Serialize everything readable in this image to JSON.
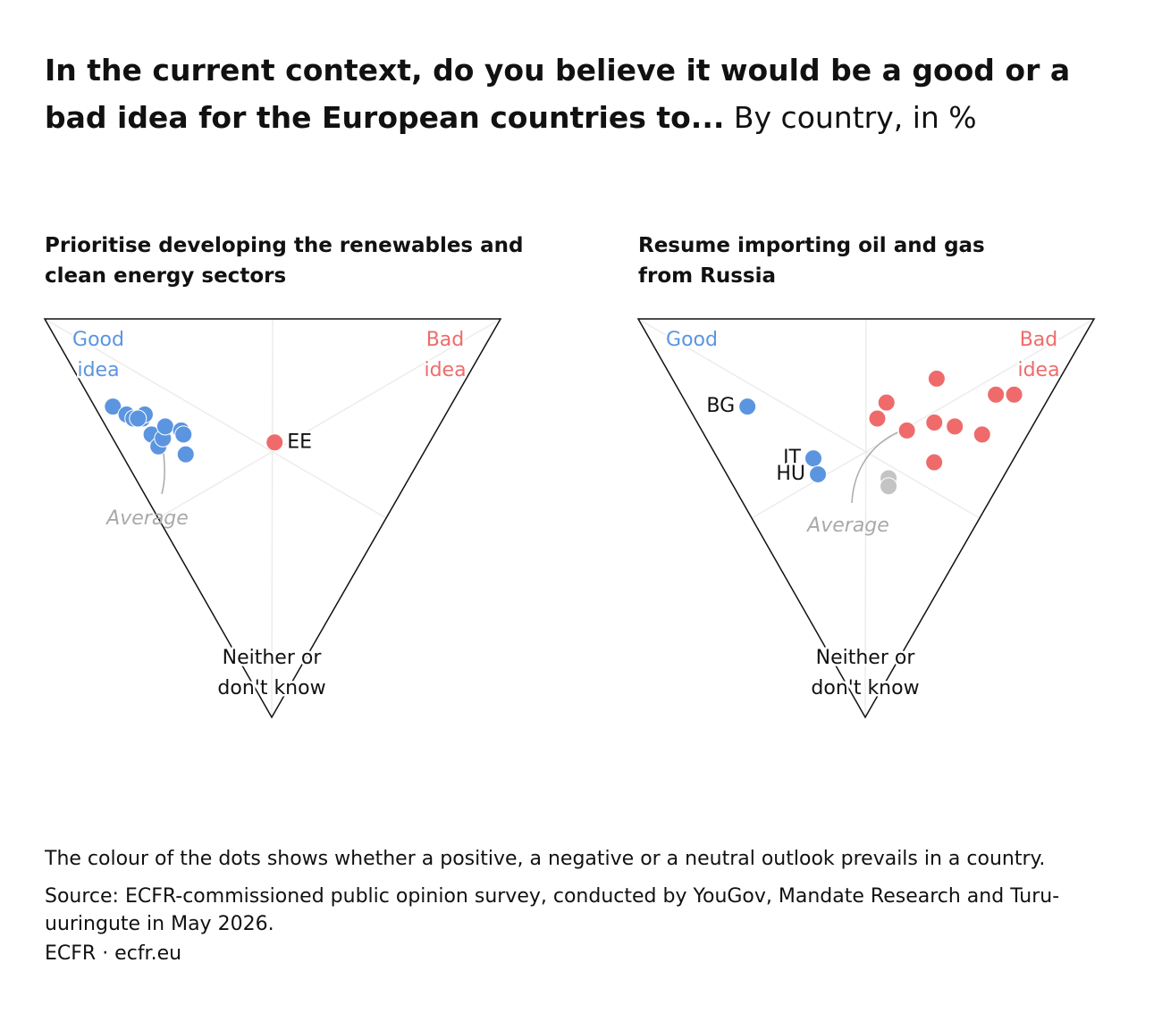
{
  "title": "In the current context, do you believe it would be a good or a bad idea for the European countries to...",
  "subtitle": "By country, in %",
  "note": "The colour of the dots shows whether a positive, a negative or a neutral outlook prevails in a country.",
  "source": "Source: ECFR-commissioned public opinion survey, conducted by YouGov, Mandate Research and Turu-uuringute in May 2026.",
  "credit": "ECFR · ecfr.eu",
  "chart_data": [
    {
      "type": "ternary",
      "title": "Prioritise developing the renewables and clean energy sectors",
      "corners": {
        "good": [
          "Good",
          "idea"
        ],
        "bad": [
          "Bad",
          "idea"
        ],
        "neither": [
          "Neither or",
          "don't know"
        ]
      },
      "corner_colors": {
        "good": "#5b95e0",
        "bad": "#ef6b6b",
        "neither": "#111111"
      },
      "annotation": "Average",
      "points": [
        {
          "label": null,
          "good": 74,
          "bad": 4,
          "neither": 22,
          "color": "#5b95e0"
        },
        {
          "label": null,
          "good": 70,
          "bad": 6,
          "neither": 24,
          "color": "#5b95e0"
        },
        {
          "label": null,
          "good": 68,
          "bad": 7,
          "neither": 25,
          "color": "#5b95e0"
        },
        {
          "label": null,
          "good": 66,
          "bad": 9,
          "neither": 25,
          "color": "#5b95e0"
        },
        {
          "label": null,
          "good": 66,
          "bad": 10,
          "neither": 24,
          "color": "#5b95e0"
        },
        {
          "label": null,
          "good": 67,
          "bad": 8,
          "neither": 25,
          "color": "#5b95e0"
        },
        {
          "label": null,
          "good": 62,
          "bad": 9,
          "neither": 29,
          "color": "#5b95e0"
        },
        {
          "label": null,
          "good": 59,
          "bad": 9,
          "neither": 32,
          "color": "#5b95e0"
        },
        {
          "label": null,
          "good": 59,
          "bad": 11,
          "neither": 30,
          "color": "#5b95e0"
        },
        {
          "label": null,
          "good": 60,
          "bad": 13,
          "neither": 27,
          "color": "#5b95e0"
        },
        {
          "label": null,
          "good": 56,
          "bad": 16,
          "neither": 28,
          "color": "#5b95e0"
        },
        {
          "label": null,
          "good": 55,
          "bad": 16,
          "neither": 29,
          "color": "#5b95e0"
        },
        {
          "label": null,
          "good": 52,
          "bad": 14,
          "neither": 34,
          "color": "#5b95e0"
        },
        {
          "label": "EE",
          "good": 34,
          "bad": 35,
          "neither": 31,
          "color": "#ef6b6b"
        }
      ]
    },
    {
      "type": "ternary",
      "title": "Resume importing oil and gas from Russia",
      "corners": {
        "good": [
          "Good"
        ],
        "bad": [
          "Bad",
          "idea"
        ],
        "neither": [
          "Neither or",
          "don't know"
        ]
      },
      "corner_colors": {
        "good": "#5b95e0",
        "bad": "#ef6b6b",
        "neither": "#111111"
      },
      "annotation": "Average",
      "points": [
        {
          "label": "BG",
          "good": 65,
          "bad": 13,
          "neither": 22,
          "color": "#5b95e0"
        },
        {
          "label": "IT",
          "good": 44,
          "bad": 21,
          "neither": 35,
          "color": "#5b95e0"
        },
        {
          "label": "HU",
          "good": 41,
          "bad": 20,
          "neither": 39,
          "color": "#5b95e0"
        },
        {
          "label": null,
          "good": 25,
          "bad": 35,
          "neither": 40,
          "color": "#c4c4c4"
        },
        {
          "label": null,
          "good": 24,
          "bad": 34,
          "neither": 42,
          "color": "#c4c4c4"
        },
        {
          "label": null,
          "good": 27,
          "bad": 58,
          "neither": 15,
          "color": "#ef6b6b"
        },
        {
          "label": null,
          "good": 35,
          "bad": 44,
          "neither": 21,
          "color": "#ef6b6b"
        },
        {
          "label": null,
          "good": 35,
          "bad": 40,
          "neither": 25,
          "color": "#ef6b6b"
        },
        {
          "label": null,
          "good": 27,
          "bad": 45,
          "neither": 28,
          "color": "#ef6b6b"
        },
        {
          "label": null,
          "good": 22,
          "bad": 52,
          "neither": 26,
          "color": "#ef6b6b"
        },
        {
          "label": null,
          "good": 17,
          "bad": 56,
          "neither": 27,
          "color": "#ef6b6b"
        },
        {
          "label": null,
          "good": 10,
          "bad": 61,
          "neither": 29,
          "color": "#ef6b6b"
        },
        {
          "label": null,
          "good": 12,
          "bad": 69,
          "neither": 19,
          "color": "#ef6b6b"
        },
        {
          "label": null,
          "good": 8,
          "bad": 73,
          "neither": 19,
          "color": "#ef6b6b"
        },
        {
          "label": null,
          "good": 17,
          "bad": 47,
          "neither": 36,
          "color": "#ef6b6b"
        }
      ]
    }
  ]
}
